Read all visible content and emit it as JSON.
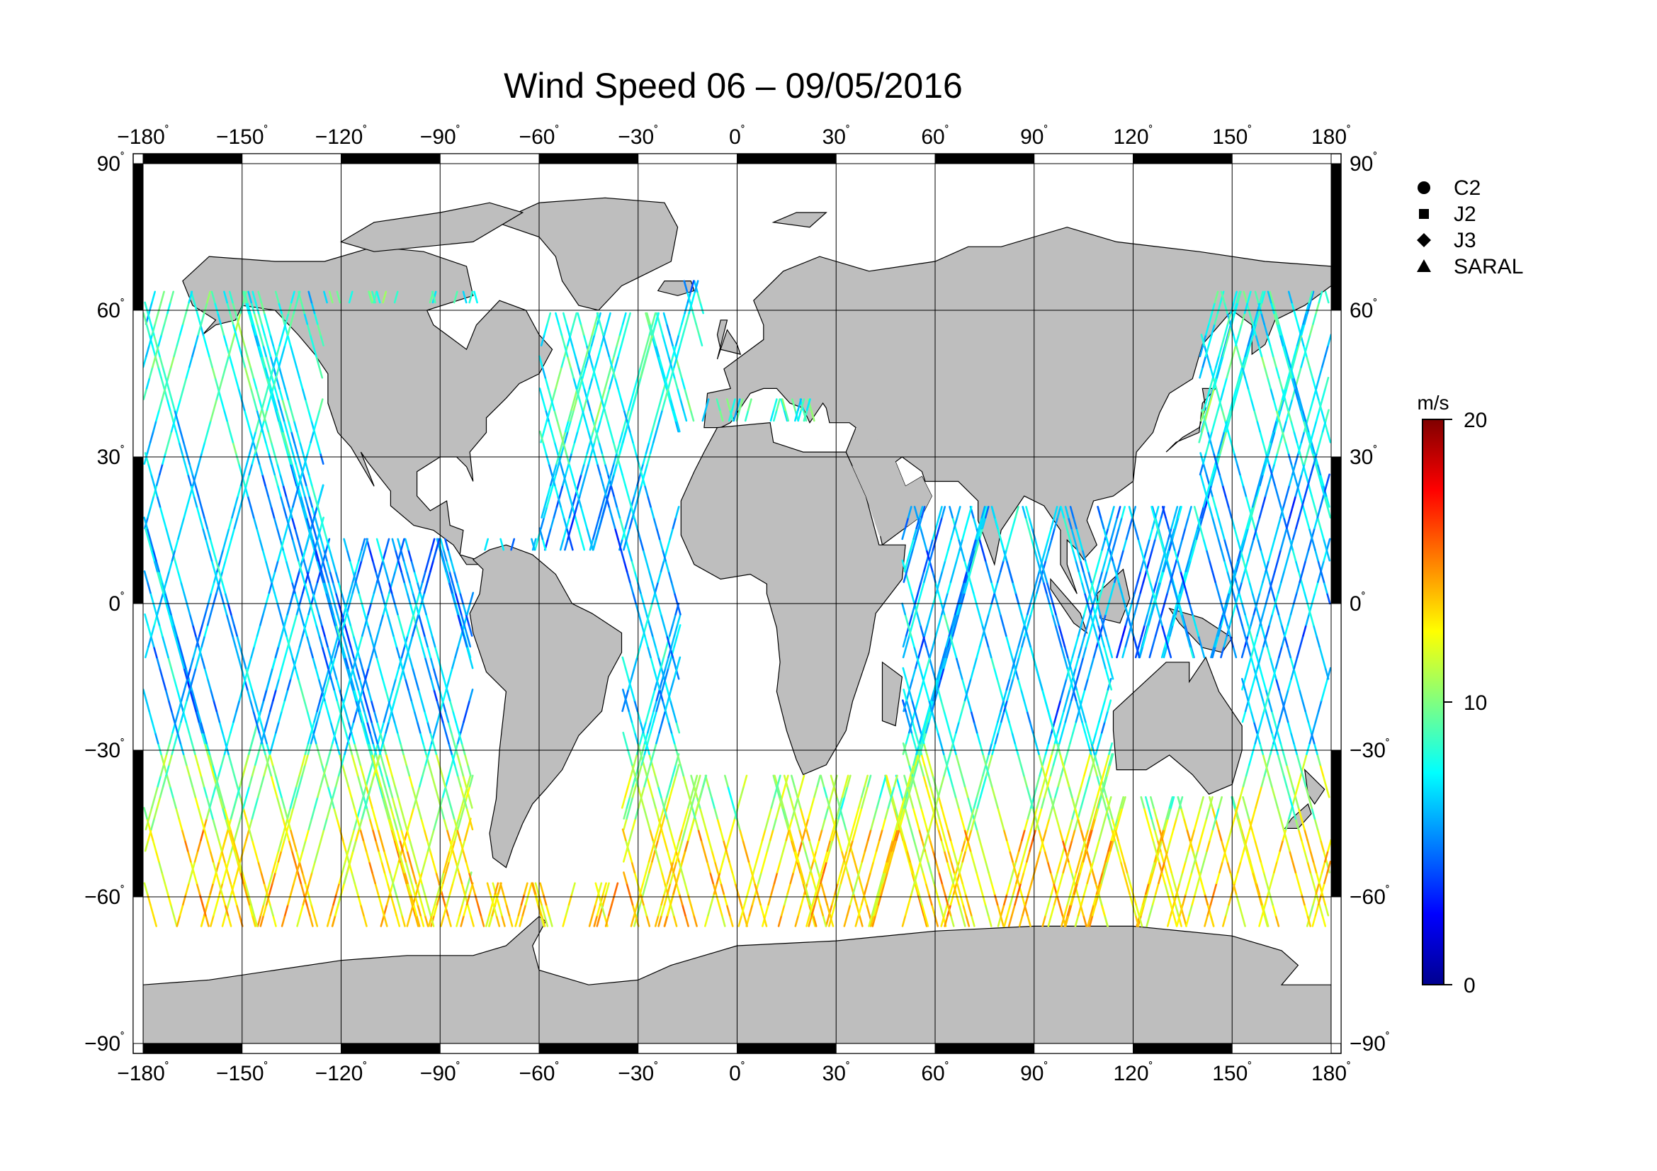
{
  "title": "Wind Speed 06 – 09/05/2016",
  "map": {
    "lon_range": [
      -180,
      180
    ],
    "lat_range": [
      -90,
      90
    ],
    "lon_ticks": [
      -180,
      -150,
      -120,
      -90,
      -60,
      -30,
      0,
      30,
      60,
      90,
      120,
      150,
      180
    ],
    "lat_ticks": [
      90,
      60,
      30,
      0,
      -30,
      -60,
      -90
    ],
    "lon_tick_labels": [
      "−180",
      "−150",
      "−120",
      "−90",
      "−60",
      "−30",
      "0",
      "30",
      "60",
      "90",
      "120",
      "150",
      "180"
    ],
    "lat_tick_labels": [
      "90",
      "60",
      "30",
      "0",
      "−30",
      "−60",
      "−90"
    ],
    "degree_mark": "˚",
    "grid": true,
    "land_color": "#bebebe",
    "coast_color": "#000000"
  },
  "legend": {
    "placement": "top-right",
    "items": [
      {
        "label": "C2",
        "marker": "circle"
      },
      {
        "label": "J2",
        "marker": "square"
      },
      {
        "label": "J3",
        "marker": "diamond"
      },
      {
        "label": "SARAL",
        "marker": "triangle"
      }
    ]
  },
  "colorbar": {
    "unit": "m/s",
    "min": 0,
    "max": 20,
    "tick_labels": [
      "20",
      "10",
      "0"
    ],
    "tick_values": [
      20,
      10,
      0
    ],
    "colors": [
      "#00008f",
      "#0000ff",
      "#0080ff",
      "#00ffff",
      "#80ff80",
      "#ffff00",
      "#ff8000",
      "#ff0000",
      "#800000"
    ]
  },
  "chart_data": {
    "type": "scatter",
    "title": "Wind Speed 06 – 09/05/2016",
    "xlim": [
      -180,
      180
    ],
    "ylim": [
      -90,
      90
    ],
    "value_unit": "m/s",
    "value_range": [
      0,
      20
    ],
    "series": [
      {
        "name": "C2"
      },
      {
        "name": "J2"
      },
      {
        "name": "J3"
      },
      {
        "name": "SARAL"
      }
    ],
    "wind_bands": [
      {
        "lat_range": [
          -66,
          -45
        ],
        "typical_speed": 13
      },
      {
        "lat_range": [
          -45,
          -30
        ],
        "typical_speed": 10
      },
      {
        "lat_range": [
          -30,
          30
        ],
        "typical_speed": 6
      },
      {
        "lat_range": [
          30,
          66
        ],
        "typical_speed": 8
      }
    ]
  }
}
